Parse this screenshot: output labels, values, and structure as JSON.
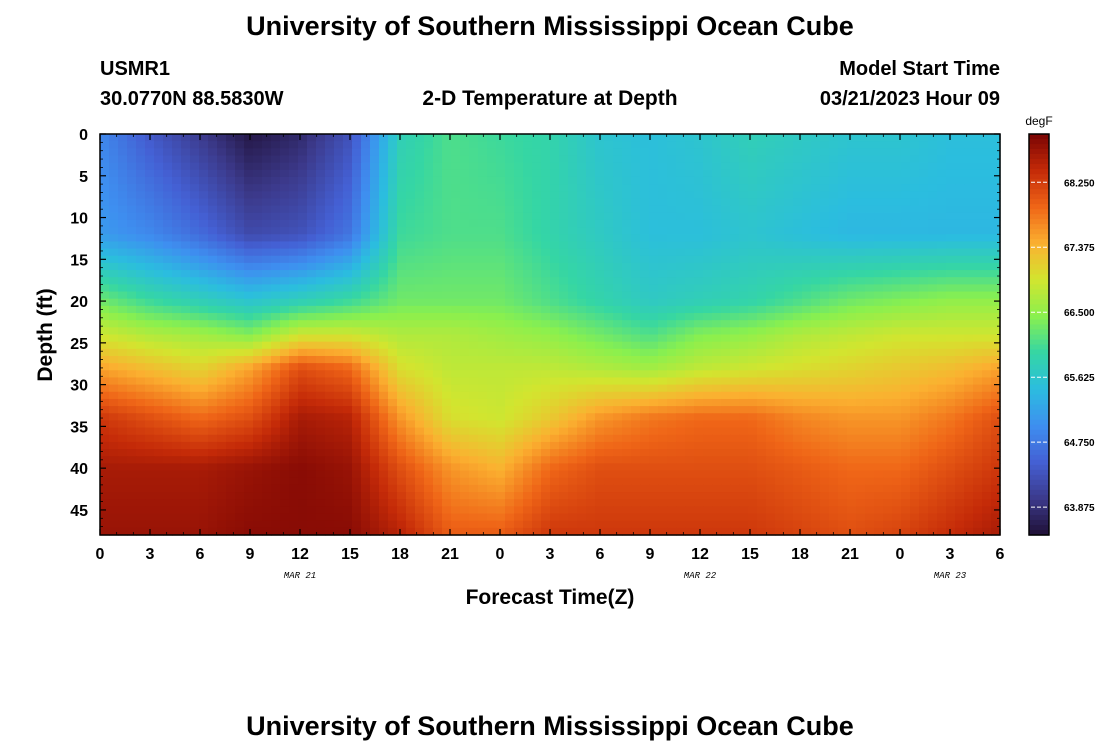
{
  "page": {
    "title": "University of Southern Mississippi Ocean Cube",
    "footer_title": "University of Southern Mississippi Ocean Cube",
    "station": "USMR1",
    "coordinates": "30.0770N  88.5830W",
    "plot_title": "2-D Temperature at Depth",
    "model_label": "Model Start Time",
    "model_time": "03/21/2023 Hour 09"
  },
  "chart_data": {
    "type": "heatmap",
    "title": "2-D Temperature at Depth",
    "xlabel": "Forecast Time(Z)",
    "ylabel": "Depth (ft)",
    "x_tick_labels": [
      "0",
      "3",
      "6",
      "9",
      "12",
      "15",
      "18",
      "21",
      "0",
      "3",
      "6",
      "9",
      "12",
      "15",
      "18",
      "21",
      "0",
      "3",
      "6"
    ],
    "x_range_hours": [
      0,
      54
    ],
    "x_tick_step_hours": 3,
    "date_labels": [
      {
        "text": "MAR 21",
        "hour": 12
      },
      {
        "text": "MAR 22",
        "hour": 36
      },
      {
        "text": "MAR 23",
        "hour": 51
      }
    ],
    "y_tick_labels": [
      "0",
      "5",
      "10",
      "15",
      "20",
      "25",
      "30",
      "35",
      "40",
      "45"
    ],
    "ylim": [
      0,
      48
    ],
    "y_reversed": true,
    "colorbar": {
      "unit": "degF",
      "vmin": 63.5,
      "vmax": 68.9,
      "tick_labels": [
        "68.250",
        "67.375",
        "66.500",
        "65.625",
        "64.750",
        "63.875"
      ],
      "tick_values": [
        68.25,
        67.375,
        66.5,
        65.625,
        64.75,
        63.875
      ],
      "colors": [
        "#1f0f35",
        "#3c3a8c",
        "#4460d4",
        "#3e8ff0",
        "#2bbddf",
        "#35d6a4",
        "#8af04e",
        "#d2e52f",
        "#fbb030",
        "#ef6517",
        "#c42a08",
        "#7a0404"
      ]
    },
    "depth_grid_ft": [
      0,
      12,
      20,
      24,
      28,
      34,
      40,
      48
    ],
    "hour_grid": [
      0,
      3,
      6,
      9,
      12,
      15,
      18,
      21,
      24,
      27,
      30,
      33,
      36,
      39,
      42,
      45,
      48,
      51,
      54
    ],
    "temperature_degF": [
      [
        64.9,
        64.4,
        64.0,
        63.6,
        63.8,
        64.3,
        65.8,
        66.1,
        66.0,
        65.9,
        65.6,
        65.5,
        65.6,
        65.8,
        65.7,
        65.6,
        65.6,
        65.5,
        65.5
      ],
      [
        65.1,
        64.9,
        64.6,
        64.2,
        64.3,
        64.7,
        66.0,
        66.1,
        66.1,
        65.9,
        65.7,
        65.5,
        65.5,
        65.6,
        65.5,
        65.4,
        65.4,
        65.4,
        65.4
      ],
      [
        66.3,
        66.0,
        65.8,
        65.6,
        65.8,
        66.0,
        66.3,
        66.3,
        66.3,
        66.1,
        65.9,
        65.7,
        65.8,
        65.9,
        66.1,
        66.3,
        66.4,
        66.5,
        66.5
      ],
      [
        66.9,
        66.7,
        66.6,
        66.4,
        66.9,
        66.9,
        66.7,
        66.7,
        66.6,
        66.5,
        66.3,
        66.1,
        66.4,
        66.5,
        66.7,
        66.8,
        66.9,
        66.9,
        66.9
      ],
      [
        67.5,
        67.3,
        67.1,
        67.5,
        68.1,
        67.9,
        67.0,
        66.8,
        66.8,
        66.8,
        66.7,
        66.6,
        66.8,
        66.9,
        67.0,
        67.1,
        67.2,
        67.3,
        67.5
      ],
      [
        68.3,
        68.1,
        67.9,
        68.1,
        68.6,
        68.5,
        67.6,
        67.0,
        66.9,
        67.2,
        67.6,
        67.8,
        67.9,
        67.9,
        67.7,
        67.6,
        67.6,
        67.8,
        68.1
      ],
      [
        68.6,
        68.6,
        68.6,
        68.7,
        68.8,
        68.7,
        68.1,
        67.6,
        67.4,
        67.9,
        68.1,
        68.1,
        68.1,
        68.1,
        68.0,
        67.9,
        67.9,
        68.1,
        68.3
      ],
      [
        68.7,
        68.7,
        68.7,
        68.8,
        68.8,
        68.8,
        68.5,
        68.0,
        68.0,
        68.3,
        68.3,
        68.3,
        68.3,
        68.3,
        68.2,
        68.1,
        68.2,
        68.4,
        68.6
      ]
    ]
  }
}
